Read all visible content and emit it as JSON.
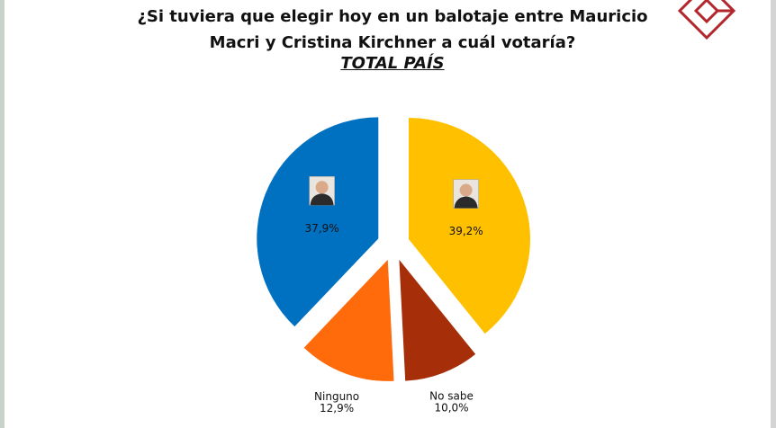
{
  "chart_data": {
    "type": "pie",
    "title": "¿Si tuviera que elegir hoy en un balotaje entre Mauricio Macri y Cristina Kirchner a cuál votaría?",
    "subtitle": "TOTAL PAÍS",
    "categories": [
      null,
      "No sabe",
      "Ninguno",
      null
    ],
    "values": [
      39.2,
      10.0,
      12.9,
      37.9
    ],
    "value_labels": [
      "39,2%",
      "10,0%",
      "12,9%",
      "37,9%"
    ],
    "colors": [
      "#FFC000",
      "#A62E08",
      "#FF6A0A",
      "#0070C0"
    ]
  }
}
